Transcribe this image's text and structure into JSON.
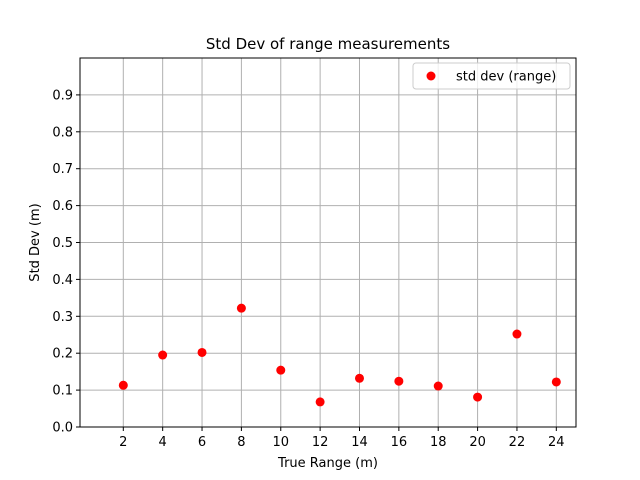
{
  "chart_data": {
    "type": "scatter",
    "title": "Std Dev of range measurements",
    "xlabel": "True Range (m)",
    "ylabel": "Std Dev (m)",
    "x_ticks": [
      "2",
      "4",
      "6",
      "8",
      "10",
      "12",
      "14",
      "16",
      "18",
      "20",
      "22",
      "24"
    ],
    "y_ticks": [
      "0.0",
      "0.1",
      "0.2",
      "0.3",
      "0.4",
      "0.5",
      "0.6",
      "0.7",
      "0.8",
      "0.9"
    ],
    "xlim": [
      -0.2,
      25.0
    ],
    "ylim": [
      0.0,
      1.0
    ],
    "grid": true,
    "legend_position": "top-right",
    "series": [
      {
        "name": "std dev (range)",
        "color": "#ff0000",
        "marker": "circle",
        "x": [
          2,
          4,
          6,
          8,
          10,
          12,
          14,
          16,
          18,
          20,
          22,
          24
        ],
        "y": [
          0.113,
          0.195,
          0.202,
          0.322,
          0.154,
          0.068,
          0.132,
          0.124,
          0.111,
          0.081,
          0.252,
          0.122
        ]
      }
    ]
  }
}
